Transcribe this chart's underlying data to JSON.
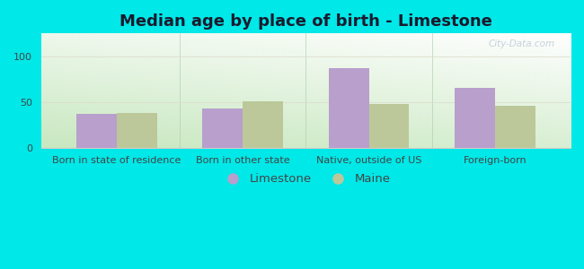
{
  "title": "Median age by place of birth - Limestone",
  "categories": [
    "Born in state of residence",
    "Born in other state",
    "Native, outside of US",
    "Foreign-born"
  ],
  "limestone_values": [
    37,
    43,
    87,
    65
  ],
  "maine_values": [
    38,
    51,
    48,
    46
  ],
  "limestone_color": "#b89fcc",
  "maine_color": "#bcc89a",
  "background_color": "#00e8e8",
  "ylim": [
    0,
    125
  ],
  "yticks": [
    0,
    50,
    100
  ],
  "bar_width": 0.32,
  "title_fontsize": 13,
  "tick_fontsize": 8,
  "legend_fontsize": 9.5,
  "watermark": "City-Data.com",
  "grad_colors": [
    "#c8e8c0",
    "#f0faf0",
    "#ffffff"
  ],
  "title_color": "#1a1a2e"
}
